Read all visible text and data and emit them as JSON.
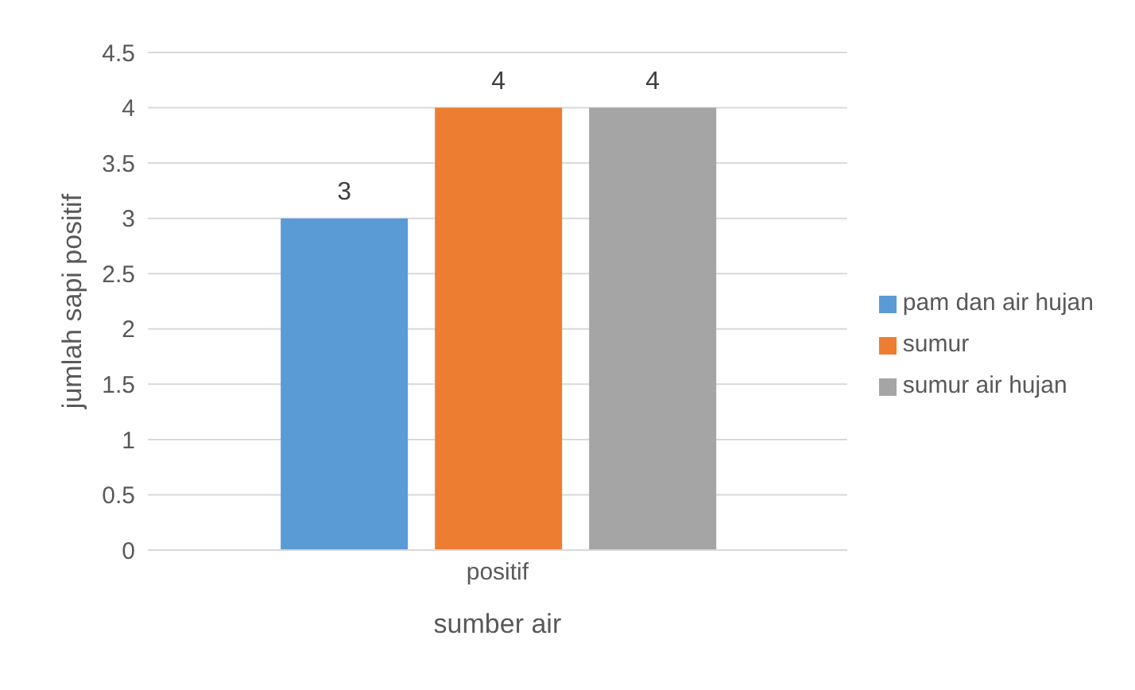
{
  "chart_data": {
    "type": "bar",
    "xlabel": "sumber air",
    "ylabel": "jumlah sapi positif",
    "categories": [
      "positif"
    ],
    "series": [
      {
        "name": "pam dan air hujan",
        "color": "#5b9bd5",
        "values": [
          3
        ]
      },
      {
        "name": "sumur",
        "color": "#ed7d31",
        "values": [
          4
        ]
      },
      {
        "name": "sumur air hujan",
        "color": "#a5a5a5",
        "values": [
          4
        ]
      }
    ],
    "ylim": [
      0,
      4.5
    ],
    "yticks": [
      0,
      0.5,
      1,
      1.5,
      2,
      2.5,
      3,
      3.5,
      4,
      4.5
    ],
    "grid": "y",
    "legend": "right",
    "data_labels": true
  }
}
